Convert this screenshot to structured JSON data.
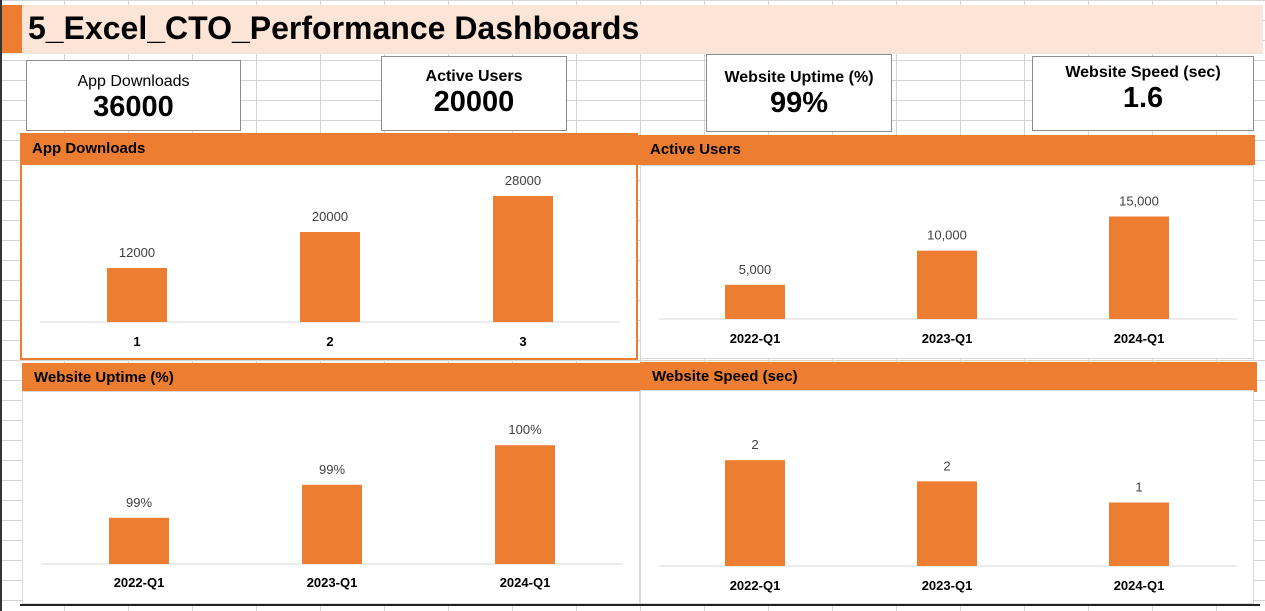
{
  "title": "5_Excel_CTO_Performance Dashboards",
  "colors": {
    "accent": "#ed7d31",
    "title_bg": "#fce4d6"
  },
  "kpis": [
    {
      "label": "App Downloads",
      "value": "36000"
    },
    {
      "label": "Active Users",
      "value": "20000"
    },
    {
      "label": "Website Uptime (%)",
      "value": "99%"
    },
    {
      "label": "Website Speed (sec)",
      "value": "1.6"
    }
  ],
  "panels": {
    "app_downloads": "App Downloads",
    "active_users": "Active Users",
    "website_uptime": "Website Uptime (%)",
    "website_speed": "Website Speed (sec)"
  },
  "chart_data": [
    {
      "type": "bar",
      "title": "App Downloads",
      "categories": [
        "1",
        "2",
        "3"
      ],
      "values": [
        12000,
        20000,
        28000
      ],
      "data_labels": [
        "12000",
        "20000",
        "28000"
      ],
      "ylim": [
        0,
        30000
      ],
      "grid": false
    },
    {
      "type": "bar",
      "title": "Active Users",
      "categories": [
        "2022-Q1",
        "2023-Q1",
        "2024-Q1"
      ],
      "values": [
        5000,
        10000,
        15000
      ],
      "data_labels": [
        "5,000",
        "10,000",
        "15,000"
      ],
      "ylim": [
        0,
        18000
      ],
      "grid": false
    },
    {
      "type": "bar",
      "title": "Website Uptime (%)",
      "categories": [
        "2022-Q1",
        "2023-Q1",
        "2024-Q1"
      ],
      "values": [
        98.7,
        99.2,
        99.8
      ],
      "data_labels": [
        "99%",
        "99%",
        "100%"
      ],
      "ylim": [
        98,
        100
      ],
      "grid": false
    },
    {
      "type": "bar",
      "title": "Website Speed (sec)",
      "categories": [
        "2022-Q1",
        "2023-Q1",
        "2024-Q1"
      ],
      "values": [
        2.0,
        1.6,
        1.2
      ],
      "data_labels": [
        "2",
        "2",
        "1"
      ],
      "ylim": [
        0,
        2.4
      ],
      "grid": false
    }
  ]
}
